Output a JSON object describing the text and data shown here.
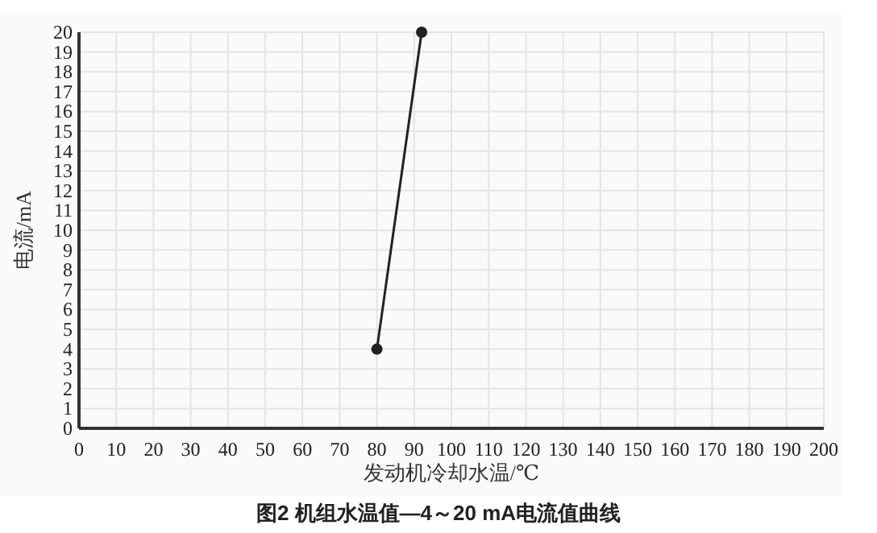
{
  "chart_data": {
    "type": "line",
    "title": "图2  机组水温值—4～20 mA电流值曲线",
    "xlabel": "发动机冷却水温/℃",
    "ylabel": "电流/mA",
    "x": [
      80,
      92
    ],
    "series": [
      {
        "color": "#222222",
        "values": [
          4,
          20
        ]
      }
    ],
    "xlim": [
      0,
      200
    ],
    "xticks": [
      0,
      10,
      20,
      30,
      40,
      50,
      60,
      70,
      80,
      90,
      100,
      110,
      120,
      130,
      140,
      150,
      160,
      170,
      180,
      190,
      200
    ],
    "ylim": [
      0,
      20
    ],
    "yticks": [
      0,
      1,
      2,
      3,
      4,
      5,
      6,
      7,
      8,
      9,
      10,
      11,
      12,
      13,
      14,
      15,
      16,
      17,
      18,
      19,
      20
    ],
    "grid": true,
    "marker": "circle",
    "line_style": "solid"
  }
}
